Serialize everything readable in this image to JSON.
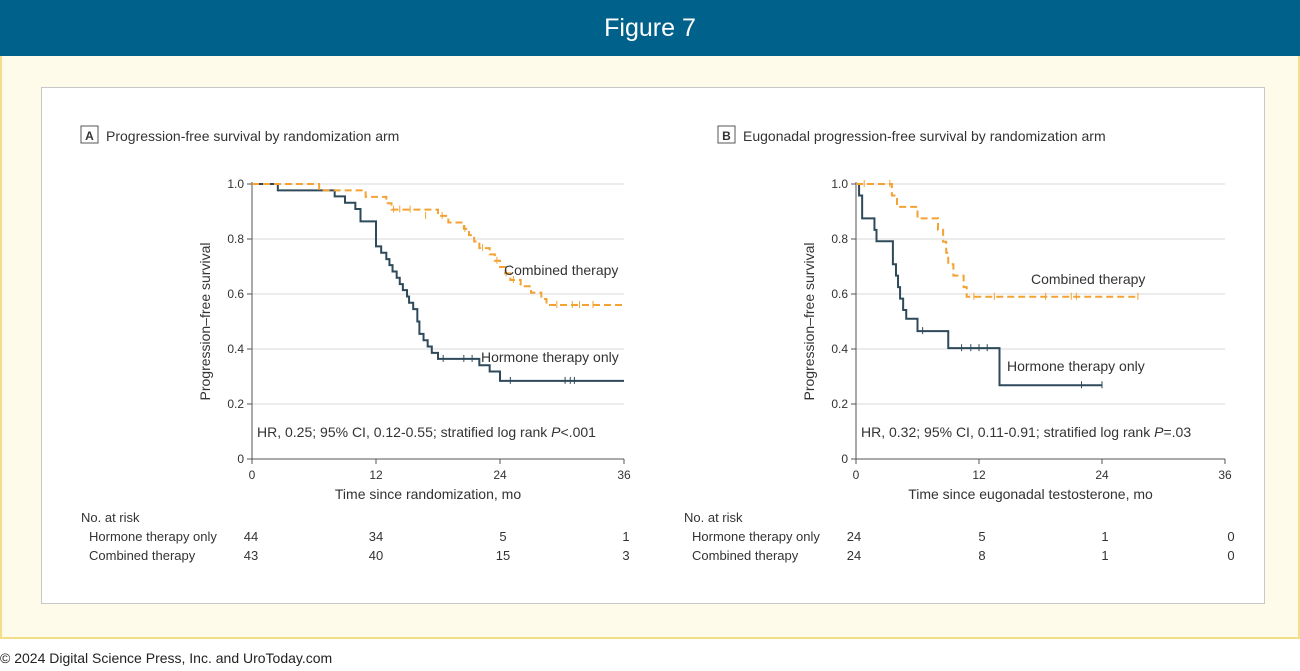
{
  "header": {
    "title": "Figure 7"
  },
  "footer": {
    "copyright": "© 2024 Digital Science Press, Inc. and UroToday.com"
  },
  "colors": {
    "hormone": "#2e4a5a",
    "combined": "#f4a233",
    "header_bg": "#00628b"
  },
  "chart_data": [
    {
      "type": "line",
      "panel": "A",
      "title": "Progression-free survival by randomization arm",
      "xlabel": "Time since randomization, mo",
      "ylabel": "Progression–free survival",
      "xlim": [
        0,
        36
      ],
      "ylim": [
        0,
        1.0
      ],
      "xticks": [
        "0",
        "12",
        "24",
        "36"
      ],
      "yticks": [
        "0",
        "0.2",
        "0.4",
        "0.6",
        "0.8",
        "1.0"
      ],
      "grid": true,
      "annotation": "HR, 0.25; 95% CI, 0.12-0.55; stratified log rank P<.001",
      "series": [
        {
          "name": "Hormone therapy only",
          "label": "Hormone therapy only",
          "style": "solid",
          "step": [
            [
              0,
              1.0
            ],
            [
              2.5,
              0.977
            ],
            [
              8,
              0.955
            ],
            [
              9,
              0.932
            ],
            [
              10,
              0.909
            ],
            [
              10.5,
              0.864
            ],
            [
              12,
              0.818
            ],
            [
              12,
              0.773
            ],
            [
              12.5,
              0.75
            ],
            [
              13,
              0.727
            ],
            [
              13.3,
              0.705
            ],
            [
              13.6,
              0.682
            ],
            [
              14,
              0.659
            ],
            [
              14.3,
              0.636
            ],
            [
              14.6,
              0.614
            ],
            [
              15,
              0.591
            ],
            [
              15.2,
              0.568
            ],
            [
              15.6,
              0.545
            ],
            [
              16,
              0.5
            ],
            [
              16.2,
              0.455
            ],
            [
              16.6,
              0.432
            ],
            [
              17,
              0.409
            ],
            [
              17.4,
              0.386
            ],
            [
              18,
              0.364
            ],
            [
              22,
              0.341
            ],
            [
              23,
              0.318
            ],
            [
              24,
              0.284
            ],
            [
              36,
              0.284
            ]
          ],
          "censor": [
            [
              18.5,
              0.364
            ],
            [
              20.5,
              0.364
            ],
            [
              21.3,
              0.364
            ],
            [
              25,
              0.284
            ],
            [
              30.3,
              0.284
            ],
            [
              30.8,
              0.284
            ],
            [
              31.2,
              0.284
            ]
          ]
        },
        {
          "name": "Combined therapy",
          "label": "Combined therapy",
          "style": "dashed",
          "step": [
            [
              0,
              1.0
            ],
            [
              6.5,
              0.977
            ],
            [
              11,
              0.953
            ],
            [
              13,
              0.93
            ],
            [
              13.5,
              0.907
            ],
            [
              18,
              0.884
            ],
            [
              19,
              0.86
            ],
            [
              20.5,
              0.837
            ],
            [
              21,
              0.814
            ],
            [
              21.5,
              0.791
            ],
            [
              22,
              0.767
            ],
            [
              23,
              0.744
            ],
            [
              23.5,
              0.721
            ],
            [
              24,
              0.698
            ],
            [
              24.5,
              0.675
            ],
            [
              25,
              0.651
            ],
            [
              26,
              0.628
            ],
            [
              27,
              0.605
            ],
            [
              28,
              0.582
            ],
            [
              28.5,
              0.56
            ],
            [
              36,
              0.56
            ]
          ],
          "censor": [
            [
              13.7,
              0.907
            ],
            [
              14.3,
              0.907
            ],
            [
              15.3,
              0.907
            ],
            [
              16.8,
              0.884
            ],
            [
              18.4,
              0.884
            ],
            [
              20.6,
              0.837
            ],
            [
              22.3,
              0.767
            ],
            [
              23.7,
              0.721
            ],
            [
              24.6,
              0.675
            ],
            [
              25.3,
              0.651
            ],
            [
              29.5,
              0.56
            ],
            [
              31,
              0.56
            ],
            [
              31.7,
              0.56
            ],
            [
              33,
              0.56
            ]
          ]
        }
      ],
      "risk_table": {
        "title": "No. at risk",
        "times": [
          0,
          12,
          24,
          36
        ],
        "rows": [
          {
            "label": "Hormone therapy only",
            "values": [
              "44",
              "34",
              "5",
              "1"
            ]
          },
          {
            "label": "Combined therapy",
            "values": [
              "43",
              "40",
              "15",
              "3"
            ]
          }
        ]
      }
    },
    {
      "type": "line",
      "panel": "B",
      "title": "Eugonadal progression-free survival by randomization arm",
      "xlabel": "Time since eugonadal testosterone, mo",
      "ylabel": "Progression–free survival",
      "xlim": [
        0,
        36
      ],
      "ylim": [
        0,
        1.0
      ],
      "xticks": [
        "0",
        "12",
        "24",
        "36"
      ],
      "yticks": [
        "0",
        "0.2",
        "0.4",
        "0.6",
        "0.8",
        "1.0"
      ],
      "grid": true,
      "annotation": "HR, 0.32; 95% CI, 0.11-0.91; stratified log rank P=.03",
      "series": [
        {
          "name": "Hormone therapy only",
          "label": "Hormone therapy only",
          "style": "solid",
          "step": [
            [
              0,
              1.0
            ],
            [
              0.3,
              0.958
            ],
            [
              0.6,
              0.875
            ],
            [
              1.8,
              0.833
            ],
            [
              2,
              0.792
            ],
            [
              3.6,
              0.708
            ],
            [
              3.9,
              0.667
            ],
            [
              4.1,
              0.625
            ],
            [
              4.3,
              0.583
            ],
            [
              4.6,
              0.542
            ],
            [
              4.9,
              0.51
            ],
            [
              6,
              0.465
            ],
            [
              9,
              0.403
            ],
            [
              14,
              0.268
            ],
            [
              24,
              0.268
            ]
          ],
          "censor": [
            [
              6.5,
              0.465
            ],
            [
              10.3,
              0.403
            ],
            [
              11.2,
              0.403
            ],
            [
              12,
              0.403
            ],
            [
              12.8,
              0.403
            ],
            [
              22,
              0.268
            ],
            [
              24,
              0.268
            ]
          ]
        },
        {
          "name": "Combined therapy",
          "label": "Combined therapy",
          "style": "dashed",
          "step": [
            [
              0,
              1.0
            ],
            [
              3.5,
              0.958
            ],
            [
              4,
              0.917
            ],
            [
              6,
              0.875
            ],
            [
              8,
              0.833
            ],
            [
              8.5,
              0.79
            ],
            [
              8.8,
              0.75
            ],
            [
              9,
              0.708
            ],
            [
              9.5,
              0.667
            ],
            [
              10.5,
              0.625
            ],
            [
              10.8,
              0.59
            ],
            [
              27.5,
              0.59
            ]
          ],
          "censor": [
            [
              0.8,
              1.0
            ],
            [
              3.3,
              1.0
            ],
            [
              11.5,
              0.59
            ],
            [
              13.5,
              0.59
            ],
            [
              18.5,
              0.59
            ],
            [
              21,
              0.59
            ],
            [
              21.5,
              0.59
            ],
            [
              27.5,
              0.59
            ]
          ]
        }
      ],
      "risk_table": {
        "title": "No. at risk",
        "times": [
          0,
          12,
          24,
          36
        ],
        "rows": [
          {
            "label": "Hormone therapy only",
            "values": [
              "24",
              "5",
              "1",
              "0"
            ]
          },
          {
            "label": "Combined therapy",
            "values": [
              "24",
              "8",
              "1",
              "0"
            ]
          }
        ]
      }
    }
  ]
}
